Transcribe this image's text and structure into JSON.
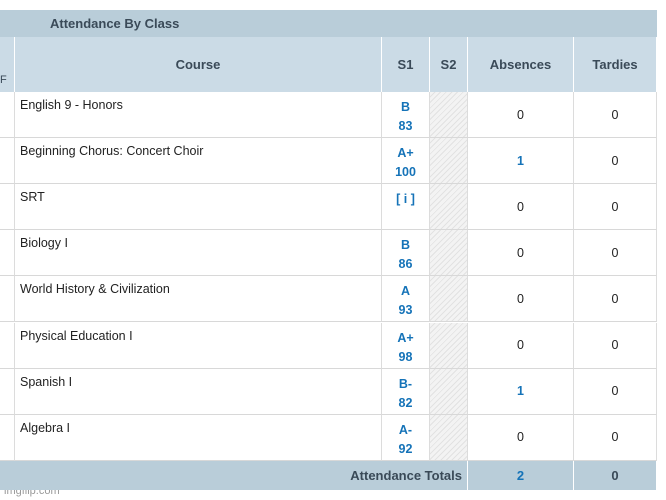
{
  "table": {
    "title": "Attendance By Class",
    "edge_header": "F",
    "columns": [
      "Course",
      "S1",
      "S2",
      "Absences",
      "Tardies"
    ],
    "rows": [
      {
        "course": "English 9 - Honors",
        "grade": "B",
        "score": 83,
        "absences": 0,
        "tardies": 0
      },
      {
        "course": "Beginning Chorus: Concert Choir",
        "grade": "A+",
        "score": 100,
        "absences": 1,
        "tardies": 0
      },
      {
        "course": "SRT",
        "grade": "[ i ]",
        "absences": 0,
        "tardies": 0
      },
      {
        "course": "Biology I",
        "grade": "B",
        "score": 86,
        "absences": 0,
        "tardies": 0
      },
      {
        "course": "World History & Civilization",
        "grade": "A",
        "score": 93,
        "absences": 0,
        "tardies": 0
      },
      {
        "course": "Physical Education I",
        "grade": "A+",
        "score": 98,
        "absences": 0,
        "tardies": 0
      },
      {
        "course": "Spanish I",
        "grade": "B-",
        "score": 82,
        "absences": 1,
        "tardies": 0
      },
      {
        "course": "Algebra I",
        "grade": "A-",
        "score": 92,
        "absences": 0,
        "tardies": 0
      }
    ],
    "totals": {
      "label": "Attendance Totals",
      "absences": 2,
      "tardies": 0
    }
  },
  "watermark": "imgflip.com"
}
